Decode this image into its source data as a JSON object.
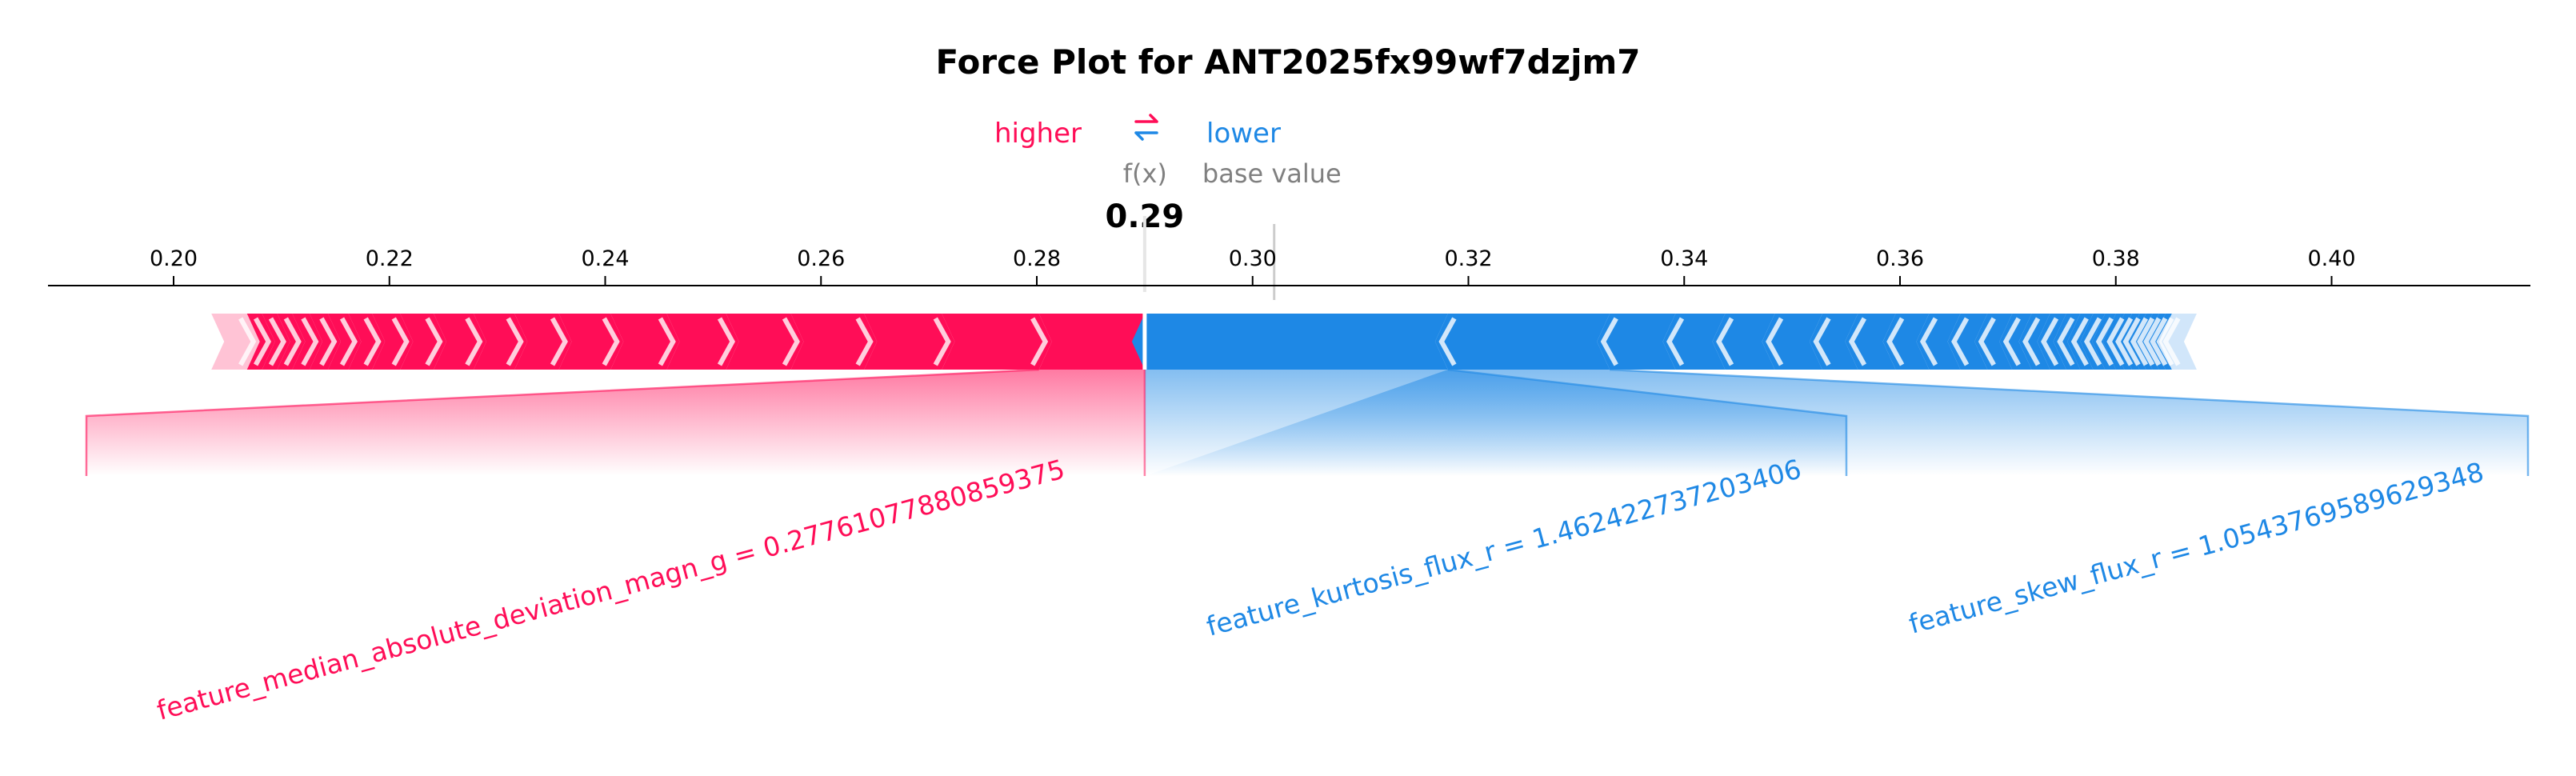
{
  "chart_data": {
    "type": "force",
    "title": "Force Plot for ANT2025fx99wf7dzjm7",
    "legend": {
      "higher": "higher",
      "lower": "lower",
      "arrow_glyph": "⇄"
    },
    "fx_label": "f(x)",
    "base_label": "base value",
    "fx_value": 0.29,
    "fx_text": "0.29",
    "base_value": 0.302,
    "xlim": [
      0.1885,
      0.4195
    ],
    "ticks": [
      0.2,
      0.22,
      0.24,
      0.26,
      0.28,
      0.3,
      0.32,
      0.34,
      0.36,
      0.38,
      0.4
    ],
    "tick_labels": [
      "0.20",
      "0.22",
      "0.24",
      "0.26",
      "0.28",
      "0.30",
      "0.32",
      "0.34",
      "0.36",
      "0.38",
      "0.40"
    ],
    "positive_extent": 0.2035,
    "negative_extent": 0.3875,
    "positive_cuts": [
      0.2068,
      0.2082,
      0.2096,
      0.211,
      0.2126,
      0.2143,
      0.2162,
      0.2184,
      0.221,
      0.2241,
      0.2278,
      0.2316,
      0.2357,
      0.2405,
      0.2457,
      0.2512,
      0.2572,
      0.264,
      0.2712,
      0.2802
    ],
    "negative_cuts": [
      0.3181,
      0.3331,
      0.3392,
      0.3438,
      0.3484,
      0.3528,
      0.3561,
      0.3596,
      0.3627,
      0.3656,
      0.3681,
      0.3704,
      0.3722,
      0.3739,
      0.3754,
      0.3767,
      0.3779,
      0.379,
      0.38,
      0.3808,
      0.3815,
      0.3822,
      0.3828,
      0.3834,
      0.384,
      0.3846,
      0.3852
    ],
    "labels": [
      {
        "text": "feature_median_absolute_deviation_magn_g = 0.27761077880859375",
        "side": "positive",
        "from": 0.2802,
        "to": 0.29
      },
      {
        "text": "feature_kurtosis_flux_r = 1.462422737203406",
        "side": "negative",
        "from": 0.29,
        "to": 0.3181
      },
      {
        "text": "feature_skew_flux_r = 1.0543769589629348",
        "side": "negative",
        "from": 0.3181,
        "to": 0.3331
      }
    ],
    "colors": {
      "positive": "#ff0d57",
      "negative": "#1e88e5",
      "positive_light": "#ffc3d5",
      "negative_light": "#d1e6fa",
      "positive_label": "#ff0d57",
      "negative_label": "#1e88e5"
    }
  }
}
